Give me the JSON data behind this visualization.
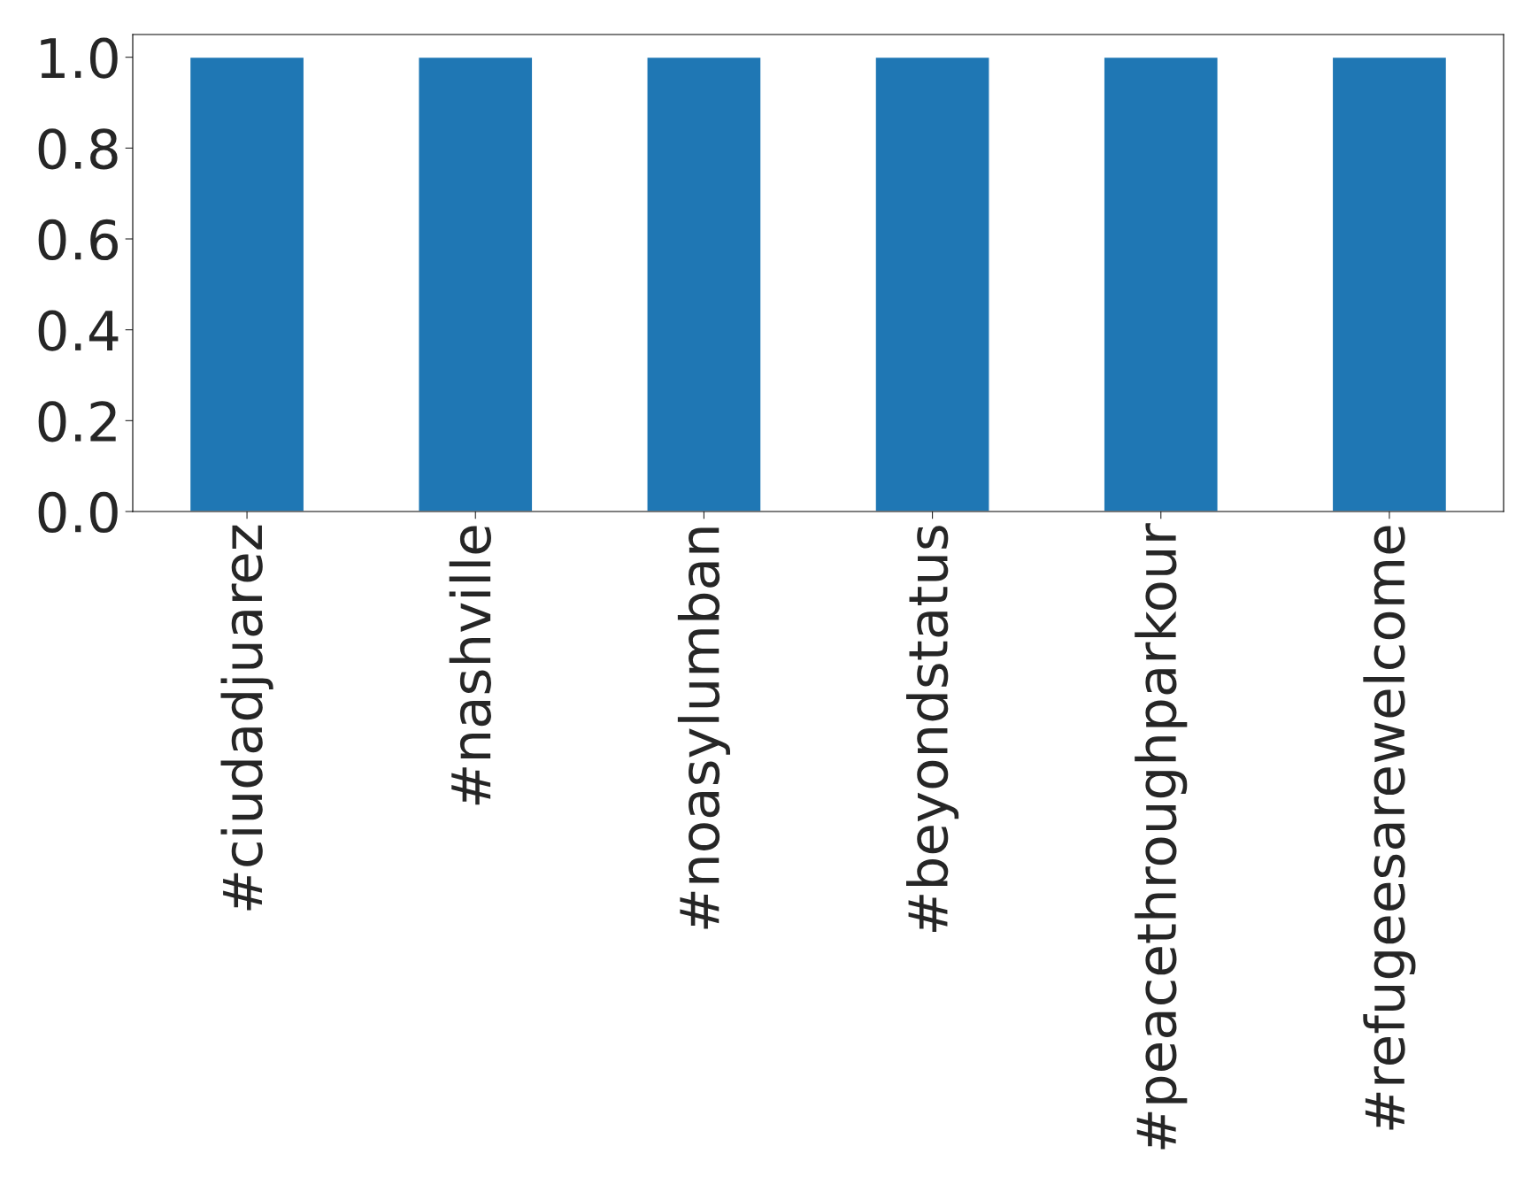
{
  "chart_data": {
    "type": "bar",
    "categories": [
      "#ciudadjuarez",
      "#nashville",
      "#noasylumban",
      "#beyondstatus",
      "#peacethroughparkour",
      "#refugeesarewelcome"
    ],
    "values": [
      1,
      1,
      1,
      1,
      1,
      1
    ],
    "color": "#1f77b4",
    "ylim": [
      0,
      1.05
    ],
    "yticks": [
      {
        "value": 0,
        "label": "0.0"
      },
      {
        "value": 0.2,
        "label": "0.2"
      },
      {
        "value": 0.4,
        "label": "0.4"
      },
      {
        "value": 0.6,
        "label": "0.6"
      },
      {
        "value": 0.8,
        "label": "0.8"
      },
      {
        "value": 1,
        "label": "1.0"
      }
    ],
    "grid": false,
    "legend": false
  }
}
